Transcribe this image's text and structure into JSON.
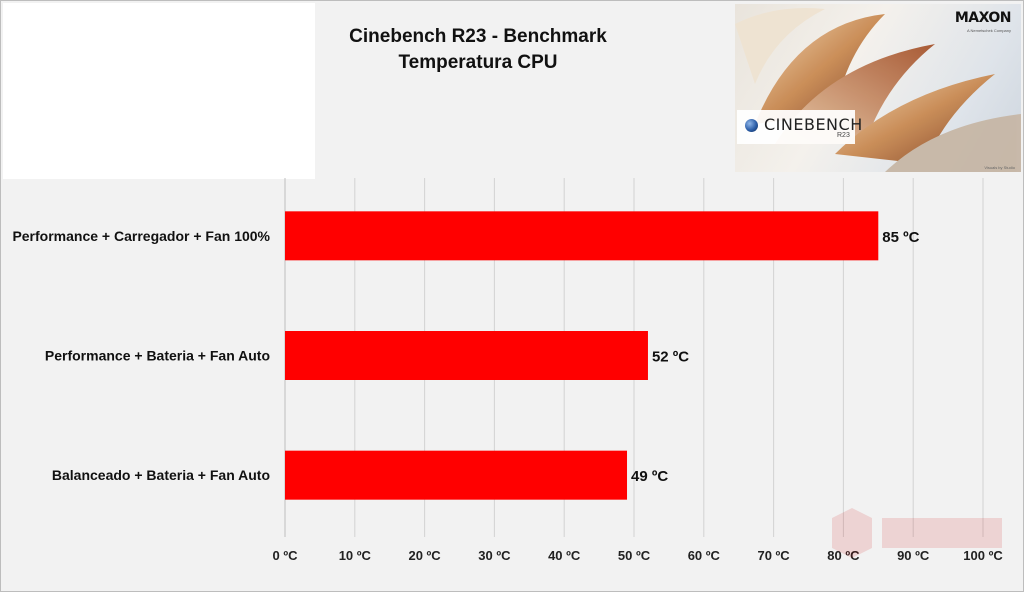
{
  "chart_data": {
    "type": "bar",
    "orientation": "horizontal",
    "title": "Cinebench R23 - Benchmark",
    "subtitle": "Temperatura CPU",
    "categories": [
      "Performance + Carregador + Fan 100%",
      "Performance + Bateria + Fan Auto",
      "Balanceado + Bateria + Fan Auto"
    ],
    "values": [
      85,
      52,
      49
    ],
    "data_labels": [
      "85 ºC",
      "52 ºC",
      "49 ºC"
    ],
    "xlim": [
      0,
      100
    ],
    "x_ticks": [
      0,
      10,
      20,
      30,
      40,
      50,
      60,
      70,
      80,
      90,
      100
    ],
    "x_tick_labels": [
      "0 ºC",
      "10 ºC",
      "20 ºC",
      "30 ºC",
      "40 ºC",
      "50 ºC",
      "60 ºC",
      "70 ºC",
      "80 ºC",
      "90 ºC",
      "100 ºC"
    ],
    "bar_color": "#ff0000",
    "grid": true,
    "legend": "none"
  },
  "logo": {
    "brand": "MAXON",
    "brand_sub": "A Nemetschek Company",
    "product": "CINEBENCH",
    "version": "R23",
    "credit": "Visuals by Studio"
  }
}
